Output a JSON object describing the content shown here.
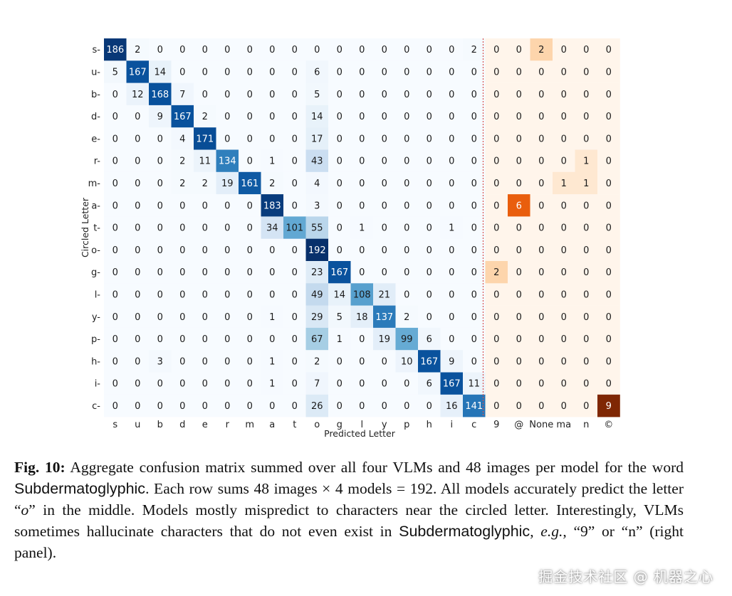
{
  "chart_data": {
    "type": "heatmap",
    "xlabel": "Predicted Letter",
    "ylabel": "Circled Letter",
    "rows": [
      "s",
      "u",
      "b",
      "d",
      "e",
      "r",
      "m",
      "a",
      "t",
      "o",
      "g",
      "l",
      "y",
      "p",
      "h",
      "i",
      "c"
    ],
    "columns": [
      "s",
      "u",
      "b",
      "d",
      "e",
      "r",
      "m",
      "a",
      "t",
      "o",
      "g",
      "l",
      "y",
      "p",
      "h",
      "i",
      "c",
      "9",
      "@",
      "None",
      "ma",
      "n",
      "©"
    ],
    "main_columns": 17,
    "main_colormap": "Blues",
    "extra_colormap": "Oranges",
    "main_max": 192,
    "extra_max": 9,
    "divider": "red dotted line between main and hallucinated characters",
    "values": [
      [
        186,
        2,
        0,
        0,
        0,
        0,
        0,
        0,
        0,
        0,
        0,
        0,
        0,
        0,
        0,
        0,
        2,
        0,
        0,
        2,
        0,
        0,
        0
      ],
      [
        5,
        167,
        14,
        0,
        0,
        0,
        0,
        0,
        0,
        6,
        0,
        0,
        0,
        0,
        0,
        0,
        0,
        0,
        0,
        0,
        0,
        0,
        0
      ],
      [
        0,
        12,
        168,
        7,
        0,
        0,
        0,
        0,
        0,
        5,
        0,
        0,
        0,
        0,
        0,
        0,
        0,
        0,
        0,
        0,
        0,
        0,
        0
      ],
      [
        0,
        0,
        9,
        167,
        2,
        0,
        0,
        0,
        0,
        14,
        0,
        0,
        0,
        0,
        0,
        0,
        0,
        0,
        0,
        0,
        0,
        0,
        0
      ],
      [
        0,
        0,
        0,
        4,
        171,
        0,
        0,
        0,
        0,
        17,
        0,
        0,
        0,
        0,
        0,
        0,
        0,
        0,
        0,
        0,
        0,
        0,
        0
      ],
      [
        0,
        0,
        0,
        2,
        11,
        134,
        0,
        1,
        0,
        43,
        0,
        0,
        0,
        0,
        0,
        0,
        0,
        0,
        0,
        0,
        0,
        1,
        0
      ],
      [
        0,
        0,
        0,
        2,
        2,
        19,
        161,
        2,
        0,
        4,
        0,
        0,
        0,
        0,
        0,
        0,
        0,
        0,
        0,
        0,
        1,
        1,
        0
      ],
      [
        0,
        0,
        0,
        0,
        0,
        0,
        0,
        183,
        0,
        3,
        0,
        0,
        0,
        0,
        0,
        0,
        0,
        0,
        6,
        0,
        0,
        0,
        0
      ],
      [
        0,
        0,
        0,
        0,
        0,
        0,
        0,
        34,
        101,
        55,
        0,
        1,
        0,
        0,
        0,
        1,
        0,
        0,
        0,
        0,
        0,
        0,
        0
      ],
      [
        0,
        0,
        0,
        0,
        0,
        0,
        0,
        0,
        0,
        192,
        0,
        0,
        0,
        0,
        0,
        0,
        0,
        0,
        0,
        0,
        0,
        0,
        0
      ],
      [
        0,
        0,
        0,
        0,
        0,
        0,
        0,
        0,
        0,
        23,
        167,
        0,
        0,
        0,
        0,
        0,
        0,
        2,
        0,
        0,
        0,
        0,
        0
      ],
      [
        0,
        0,
        0,
        0,
        0,
        0,
        0,
        0,
        0,
        49,
        14,
        108,
        21,
        0,
        0,
        0,
        0,
        0,
        0,
        0,
        0,
        0,
        0
      ],
      [
        0,
        0,
        0,
        0,
        0,
        0,
        0,
        1,
        0,
        29,
        5,
        18,
        137,
        2,
        0,
        0,
        0,
        0,
        0,
        0,
        0,
        0,
        0
      ],
      [
        0,
        0,
        0,
        0,
        0,
        0,
        0,
        0,
        0,
        67,
        1,
        0,
        19,
        99,
        6,
        0,
        0,
        0,
        0,
        0,
        0,
        0,
        0
      ],
      [
        0,
        0,
        3,
        0,
        0,
        0,
        0,
        1,
        0,
        2,
        0,
        0,
        0,
        10,
        167,
        9,
        0,
        0,
        0,
        0,
        0,
        0,
        0
      ],
      [
        0,
        0,
        0,
        0,
        0,
        0,
        0,
        1,
        0,
        7,
        0,
        0,
        0,
        0,
        6,
        167,
        11,
        0,
        0,
        0,
        0,
        0,
        0
      ],
      [
        0,
        0,
        0,
        0,
        0,
        0,
        0,
        0,
        0,
        26,
        0,
        0,
        0,
        0,
        0,
        16,
        141,
        0,
        0,
        0,
        0,
        0,
        9
      ]
    ]
  },
  "caption": {
    "label": "Fig. 10:",
    "t1": " Aggregate confusion matrix summed over all four VLMs and 48 images per model for the word ",
    "word1": "Subdermatoglyphic",
    "t2": ". Each row sums 48 images × 4 models = 192. All models accurately predict the letter “",
    "letter": "o",
    "t3": "” in the middle. Models mostly mispredict to characters near the circled letter. Interestingly, VLMs sometimes hallucinate characters that do not even exist in ",
    "word2": "Subdermatoglyphic",
    "t4": ", ",
    "eg": "e.g.",
    "t5": ", “9” or “n” (right panel)."
  },
  "watermark": "掘金技术社区 @ 机器之心"
}
